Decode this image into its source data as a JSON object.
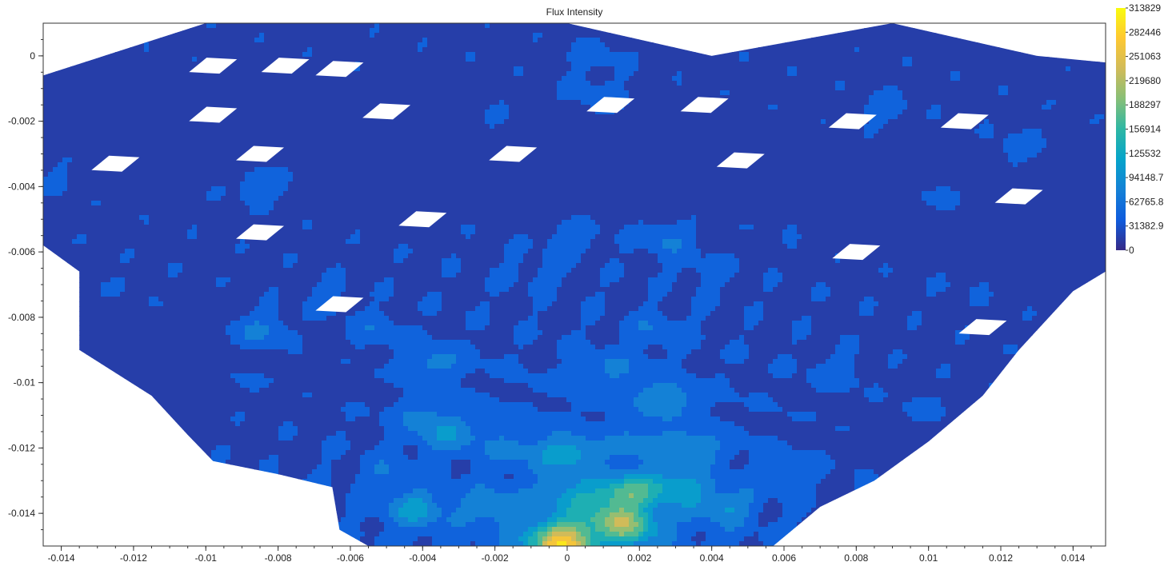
{
  "chart_data": {
    "type": "heatmap",
    "subtype": "filled-contour",
    "title": "Flux Intensity",
    "xlabel": "",
    "ylabel": "",
    "xlim": [
      -0.0145,
      0.0149
    ],
    "ylim": [
      -0.015,
      0.001
    ],
    "x_ticks": [
      -0.014,
      -0.012,
      -0.01,
      -0.008,
      -0.006,
      -0.004,
      -0.002,
      0,
      0.002,
      0.004,
      0.006,
      0.008,
      0.01,
      0.012,
      0.014
    ],
    "x_tick_labels": [
      "-0.014",
      "-0.012",
      "-0.01",
      "-0.008",
      "-0.006",
      "-0.004",
      "-0.002",
      "0",
      "0.002",
      "0.004",
      "0.006",
      "0.008",
      "0.01",
      "0.012",
      "0.014"
    ],
    "y_ticks": [
      0,
      -0.002,
      -0.004,
      -0.006,
      -0.008,
      -0.01,
      -0.012,
      -0.014
    ],
    "y_tick_labels": [
      "0",
      "-0.002",
      "-0.004",
      "-0.006",
      "-0.008",
      "-0.01",
      "-0.012",
      "-0.014"
    ],
    "colorbar": {
      "min": 0,
      "max": 313829,
      "tick_values": [
        313829,
        282446,
        251063,
        219680,
        188297,
        156914,
        125532,
        94148.7,
        62765.8,
        31382.9,
        0
      ],
      "tick_labels": [
        "313829",
        "282446",
        "251063",
        "219680",
        "188297",
        "156914",
        "125532",
        "94148.7",
        "62765.8",
        "31382.9",
        "0"
      ],
      "colormap": "parula",
      "colors": [
        "#352a87",
        "#0f5cdd",
        "#1481d6",
        "#06a4ca",
        "#2eb7a4",
        "#87bf77",
        "#d1bb59",
        "#fec832",
        "#f9fb0e"
      ]
    },
    "levels": [
      0,
      31382.9,
      62765.8,
      94148.7,
      125532,
      156914,
      188297,
      219680,
      251063,
      282446,
      313829
    ],
    "grid": false,
    "peaks": [
      {
        "x": 0.0017,
        "y": -0.0144,
        "value": 200000
      },
      {
        "x": 0.0,
        "y": -0.015,
        "value": 240000
      },
      {
        "x": 0.0017,
        "y": -0.0133,
        "value": 175000
      },
      {
        "x": -0.0004,
        "y": -0.0147,
        "value": 150000
      },
      {
        "x": 0.0,
        "y": -0.0122,
        "value": 130000
      },
      {
        "x": -0.0042,
        "y": -0.0139,
        "value": 115000
      },
      {
        "x": 0.0027,
        "y": -0.0105,
        "value": 110000
      },
      {
        "x": 0.0043,
        "y": -0.0138,
        "value": 105000
      },
      {
        "x": -0.0033,
        "y": -0.0116,
        "value": 100000
      },
      {
        "x": 0.0035,
        "y": -0.012,
        "value": 95000
      },
      {
        "x": -0.0085,
        "y": -0.0084,
        "value": 90000
      },
      {
        "x": -0.0037,
        "y": -0.0094,
        "value": 88000
      },
      {
        "x": 0.0027,
        "y": -0.0056,
        "value": 85000
      },
      {
        "x": -0.0085,
        "y": -0.004,
        "value": 82000
      },
      {
        "x": 0.0001,
        "y": -0.0056,
        "value": 75000
      },
      {
        "x": 0.0008,
        "y": -0.0012,
        "value": 75000
      },
      {
        "x": 0.0008,
        "y": 0.0,
        "value": 70000
      },
      {
        "x": -0.0053,
        "y": -0.0084,
        "value": 70000
      },
      {
        "x": 0.0088,
        "y": -0.0016,
        "value": 72000
      },
      {
        "x": 0.0124,
        "y": -0.0028,
        "value": 68000
      },
      {
        "x": 0.0025,
        "y": -0.0084,
        "value": 70000
      },
      {
        "x": 0.0038,
        "y": -0.0066,
        "value": 60000
      },
      {
        "x": 0.0075,
        "y": -0.0097,
        "value": 62000
      },
      {
        "x": -0.0067,
        "y": -0.0073,
        "value": 60000
      },
      {
        "x": 0.0013,
        "y": -0.0096,
        "value": 75000
      },
      {
        "x": 0.002,
        "y": -0.0118,
        "value": 80000
      },
      {
        "x": -0.0015,
        "y": -0.012,
        "value": 70000
      },
      {
        "x": 0.006,
        "y": -0.0128,
        "value": 60000
      },
      {
        "x": -0.005,
        "y": -0.0128,
        "value": 65000
      },
      {
        "x": -0.014,
        "y": -0.0037,
        "value": 55000
      },
      {
        "x": 0.0104,
        "y": -0.0043,
        "value": 55000
      },
      {
        "x": -0.001,
        "y": -0.0066,
        "value": 55000
      },
      {
        "x": 0.006,
        "y": -0.005,
        "value": 50000
      },
      {
        "x": -0.002,
        "y": -0.002,
        "value": 50000
      },
      {
        "x": 0.01,
        "y": -0.0108,
        "value": 50000
      },
      {
        "x": -0.012,
        "y": -0.007,
        "value": 50000
      },
      {
        "x": -0.009,
        "y": -0.01,
        "value": 45000
      },
      {
        "x": 0.011,
        "y": -0.007,
        "value": 48000
      },
      {
        "x": -0.004,
        "y": -0.011,
        "value": 75000
      },
      {
        "x": 0.0,
        "y": -0.0135,
        "value": 110000
      },
      {
        "x": 0.003,
        "y": -0.0132,
        "value": 120000
      },
      {
        "x": -0.002,
        "y": -0.0138,
        "value": 100000
      },
      {
        "x": 0.001,
        "y": -0.014,
        "value": 130000
      }
    ],
    "boundary_vertices_top": [
      {
        "x": -0.0145,
        "y": -0.0006
      },
      {
        "x": -0.01,
        "y": 0.001
      },
      {
        "x": -0.006,
        "y": 0.001
      },
      {
        "x": 0.0,
        "y": 0.001
      },
      {
        "x": 0.004,
        "y": 0.0
      },
      {
        "x": 0.009,
        "y": 0.001
      },
      {
        "x": 0.013,
        "y": 0.0
      },
      {
        "x": 0.0149,
        "y": -0.0002
      }
    ],
    "boundary_vertices_right": [
      {
        "x": 0.0149,
        "y": -0.003
      },
      {
        "x": 0.0149,
        "y": -0.0066
      },
      {
        "x": 0.014,
        "y": -0.0072
      },
      {
        "x": 0.0125,
        "y": -0.009
      },
      {
        "x": 0.0115,
        "y": -0.0104
      },
      {
        "x": 0.01,
        "y": -0.0118
      },
      {
        "x": 0.0085,
        "y": -0.013
      },
      {
        "x": 0.007,
        "y": -0.0138
      },
      {
        "x": 0.0057,
        "y": -0.015
      }
    ],
    "boundary_vertices_left": [
      {
        "x": -0.0145,
        "y": -0.0058
      },
      {
        "x": -0.0135,
        "y": -0.0066
      },
      {
        "x": -0.0135,
        "y": -0.0082
      },
      {
        "x": -0.0135,
        "y": -0.009
      },
      {
        "x": -0.0115,
        "y": -0.0104
      },
      {
        "x": -0.0105,
        "y": -0.0116
      },
      {
        "x": -0.0098,
        "y": -0.0124
      },
      {
        "x": -0.008,
        "y": -0.0128
      },
      {
        "x": -0.0065,
        "y": -0.0132
      },
      {
        "x": -0.0063,
        "y": -0.0145
      },
      {
        "x": -0.0055,
        "y": -0.015
      }
    ],
    "holes": [
      {
        "x": -0.0098,
        "y": -0.0003
      },
      {
        "x": -0.0078,
        "y": -0.0003
      },
      {
        "x": -0.0063,
        "y": -0.0004
      },
      {
        "x": -0.0098,
        "y": -0.0018
      },
      {
        "x": -0.0125,
        "y": -0.0033
      },
      {
        "x": -0.0085,
        "y": -0.003
      },
      {
        "x": -0.005,
        "y": -0.0017
      },
      {
        "x": 0.0012,
        "y": -0.0015
      },
      {
        "x": 0.0038,
        "y": -0.0015
      },
      {
        "x": 0.0079,
        "y": -0.002
      },
      {
        "x": 0.011,
        "y": -0.002
      },
      {
        "x": -0.0015,
        "y": -0.003
      },
      {
        "x": 0.0048,
        "y": -0.0032
      },
      {
        "x": 0.0125,
        "y": -0.0043
      },
      {
        "x": -0.004,
        "y": -0.005
      },
      {
        "x": -0.0085,
        "y": -0.0054
      },
      {
        "x": 0.008,
        "y": -0.006
      },
      {
        "x": -0.0063,
        "y": -0.0076
      },
      {
        "x": 0.0115,
        "y": -0.0083
      }
    ]
  }
}
